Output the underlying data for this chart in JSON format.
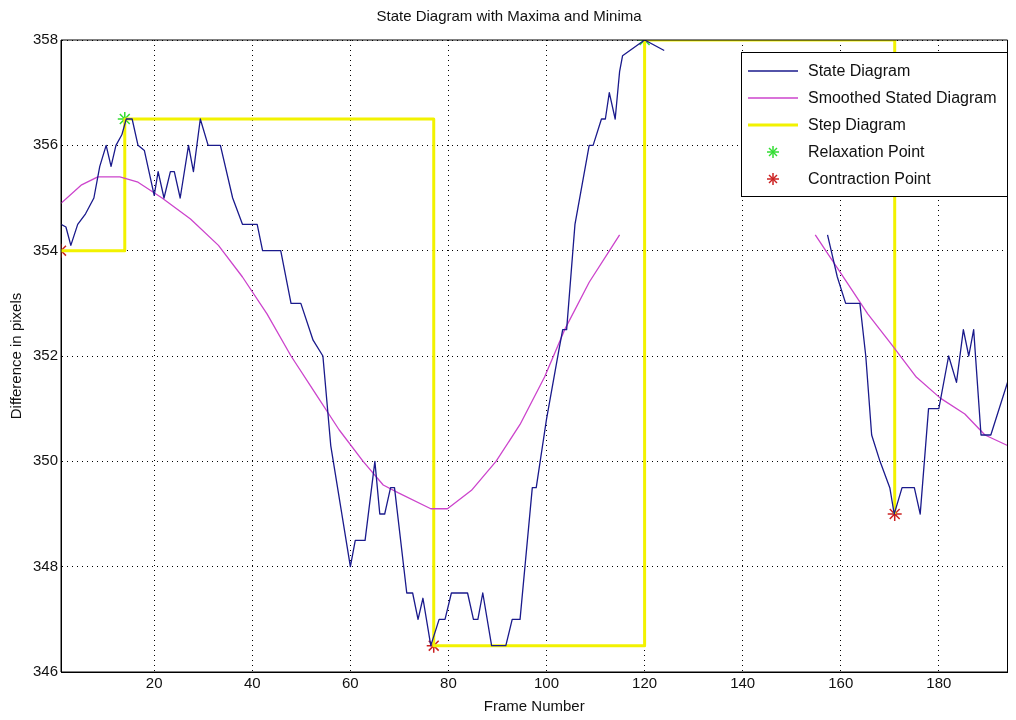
{
  "chart_data": {
    "type": "line",
    "title": "State Diagram with Maxima and Minima",
    "xlabel": "Frame Number",
    "ylabel": "Difference in pixels",
    "xlim": [
      1,
      194
    ],
    "xticks": [
      20,
      40,
      60,
      80,
      100,
      120,
      140,
      160,
      180
    ],
    "ylim": [
      346,
      358
    ],
    "yticks": [
      346,
      348,
      350,
      352,
      354,
      356,
      358
    ],
    "grid": true,
    "legend": "top right",
    "series": [
      {
        "name": "State Diagram",
        "color": "#1a1a8c",
        "line_style": "solid",
        "x": [
          1,
          2,
          3,
          4.4,
          6,
          7.7,
          8.9,
          10.2,
          11.2,
          12.2,
          13.4,
          14.3,
          15.5,
          16.7,
          18,
          20,
          20.8,
          22,
          23.3,
          24.1,
          25.3,
          27,
          28,
          29.4,
          31,
          33.5,
          36,
          38,
          41,
          42.1,
          45.8,
          47.9,
          49.9,
          52.4,
          54.4,
          56,
          60,
          61,
          63,
          65,
          66,
          67,
          68.2,
          69,
          71.5,
          72.7,
          73.8,
          74.8,
          76.4,
          78.1,
          79.3,
          80.6,
          83.9,
          85.1,
          86,
          87,
          88.8,
          91.7,
          93,
          94.6,
          97.1,
          97.9,
          100,
          102.5,
          103.3,
          104.1,
          105.8,
          108.7,
          109.5,
          111.2,
          112,
          112.8,
          114,
          114.9,
          115.5,
          120,
          124,
          140,
          157.3,
          159.3,
          161,
          163.9,
          165.1,
          166.3,
          168,
          170,
          170.9,
          172.5,
          175,
          176.2,
          177.9,
          180,
          182,
          183.6,
          185,
          186.1,
          187.1,
          188.6,
          190.6,
          194
        ],
        "values": [
          354.5,
          354.45,
          354.1,
          354.5,
          354.7,
          355,
          355.6,
          356,
          355.6,
          356,
          356.2,
          356.5,
          356.5,
          356,
          355.9,
          355.05,
          355.5,
          355,
          355.5,
          355.5,
          355,
          356,
          355.5,
          356.5,
          356,
          356,
          355,
          354.5,
          354.5,
          354,
          354,
          353,
          353,
          352.3,
          352,
          350.3,
          348,
          348.5,
          348.5,
          350,
          349,
          349,
          349.5,
          349.5,
          347.5,
          347.5,
          347,
          347.4,
          346.5,
          347,
          347,
          347.5,
          347.5,
          347,
          347,
          347.5,
          346.5,
          346.5,
          347,
          347,
          349.5,
          349.5,
          350.8,
          352.1,
          352.5,
          352.5,
          354.5,
          356,
          356,
          356.5,
          356.5,
          357,
          356.5,
          357.4,
          357.7,
          358,
          357.8,
          null,
          354.3,
          353.5,
          353,
          353,
          352,
          350.5,
          350,
          349.5,
          349,
          349.5,
          349.5,
          349,
          351,
          351,
          352,
          351.5,
          352.5,
          352,
          352.5,
          350.5,
          350.5,
          351.5
        ]
      },
      {
        "name": "Smoothed Stated Diagram",
        "color": "#cc44cc",
        "line_style": "solid",
        "x": [
          1,
          5.2,
          8.5,
          13,
          16.7,
          21.6,
          27.4,
          33.1,
          38,
          43,
          47.9,
          52.8,
          57.7,
          62.6,
          66.7,
          69.8,
          76.4,
          79.8,
          84.7,
          89.7,
          94.6,
          99.6,
          103.7,
          108.7,
          114.9,
          135,
          154.8,
          159.8,
          165.5,
          170.5,
          175.4,
          180.3,
          185.3,
          189.4,
          194
        ],
        "values": [
          354.9,
          355.25,
          355.4,
          355.4,
          355.3,
          355,
          354.6,
          354.1,
          353.5,
          352.8,
          352,
          351.3,
          350.6,
          350,
          349.55,
          349.4,
          349.1,
          349.1,
          349.45,
          350,
          350.7,
          351.6,
          352.5,
          353.4,
          354.3,
          null,
          354.3,
          353.6,
          352.8,
          352.2,
          351.6,
          351.2,
          350.9,
          350.5,
          350.3
        ]
      },
      {
        "name": "Step Diagram",
        "type": "step",
        "color": "#f2f200",
        "line_style": "solid",
        "x": [
          1,
          14,
          77,
          120,
          171
        ],
        "values": [
          354,
          356.5,
          346.5,
          358,
          349
        ]
      },
      {
        "name": "Relaxation Point",
        "type": "scatter",
        "color": "#33dd33",
        "marker": "cross",
        "x": [
          14,
          120
        ],
        "values": [
          356.5,
          358
        ]
      },
      {
        "name": "Contraction Point",
        "type": "scatter",
        "color": "#cc2222",
        "marker": "cross",
        "x": [
          1,
          77,
          171
        ],
        "values": [
          354,
          346.5,
          349
        ]
      }
    ]
  }
}
